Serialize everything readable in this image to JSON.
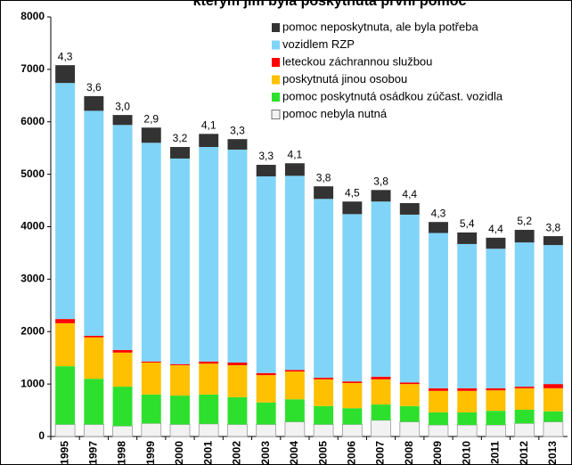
{
  "chart_data": {
    "type": "stacked_bar",
    "title": "kterým jim byla poskytnutá první pomoc",
    "categories": [
      "1995",
      "1997",
      "1998",
      "1999",
      "2000",
      "2001",
      "2002",
      "2003",
      "2004",
      "2005",
      "2006",
      "2007",
      "2008",
      "2009",
      "2010",
      "2011",
      "2012",
      "2013"
    ],
    "series": [
      {
        "name": "pomoc nebyla nutná",
        "color": "#f2f2f2",
        "values": [
          230,
          230,
          200,
          250,
          230,
          240,
          230,
          230,
          280,
          230,
          230,
          310,
          280,
          220,
          220,
          220,
          250,
          280
        ]
      },
      {
        "name": "pomoc poskytnutá osádkou zúčast. vozidla",
        "color": "#2ee02e",
        "values": [
          1110,
          870,
          750,
          550,
          550,
          560,
          520,
          420,
          430,
          350,
          310,
          300,
          300,
          240,
          240,
          270,
          260,
          200
        ]
      },
      {
        "name": "poskytnutá jinou osobou",
        "color": "#ffc000",
        "values": [
          820,
          790,
          650,
          610,
          580,
          590,
          610,
          520,
          530,
          510,
          480,
          480,
          420,
          410,
          410,
          390,
          410,
          440
        ]
      },
      {
        "name": "leteckou záchrannou službou",
        "color": "#ff0000",
        "values": [
          80,
          30,
          50,
          20,
          20,
          40,
          50,
          40,
          30,
          30,
          30,
          50,
          30,
          50,
          50,
          40,
          30,
          80
        ]
      },
      {
        "name": "vozidlem RZP",
        "color": "#80d4f8",
        "values": [
          4500,
          4290,
          4290,
          4170,
          3920,
          4090,
          4060,
          3750,
          3700,
          3410,
          3190,
          3340,
          3200,
          2960,
          2750,
          2660,
          2750,
          2650
        ]
      },
      {
        "name": "pomoc neposkytnuta, ale byla potřeba",
        "color": "#333333",
        "values": [
          340,
          280,
          190,
          290,
          220,
          250,
          200,
          220,
          240,
          240,
          240,
          220,
          220,
          210,
          220,
          210,
          240,
          170
        ]
      }
    ],
    "bar_labels": [
      "4,3",
      "3,6",
      "3,0",
      "2,9",
      "3,2",
      "4,1",
      "3,3",
      "3,3",
      "4,1",
      "3,8",
      "4,5",
      "3,8",
      "4,4",
      "4,3",
      "5,4",
      "4,4",
      "5,2",
      "3,8"
    ],
    "ylim": [
      0,
      8000
    ],
    "yticks": [
      0,
      1000,
      2000,
      3000,
      4000,
      5000,
      6000,
      7000,
      8000
    ],
    "grid": false
  }
}
